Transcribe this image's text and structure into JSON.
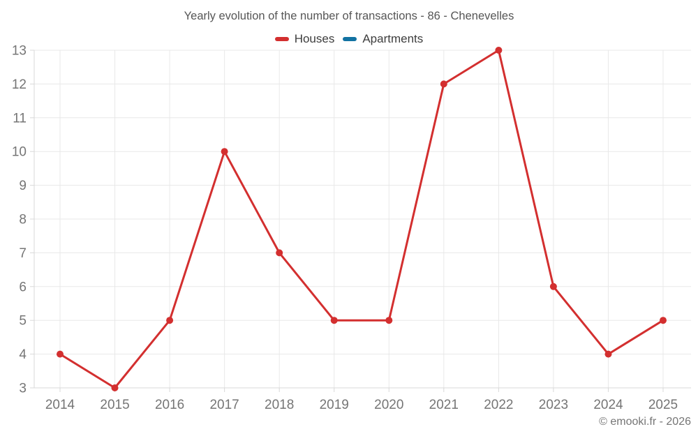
{
  "page": {
    "copyright": "© emooki.fr - 2026"
  },
  "chart_data": {
    "type": "line",
    "title": "Yearly evolution of the number of transactions - 86 - Chenevelles",
    "categories": [
      "2014",
      "2015",
      "2016",
      "2017",
      "2018",
      "2019",
      "2020",
      "2021",
      "2022",
      "2023",
      "2024",
      "2025"
    ],
    "series": [
      {
        "name": "Houses",
        "color": "#d32f2f",
        "marker": "circle",
        "values": [
          4,
          3,
          5,
          10,
          7,
          5,
          5,
          12,
          13,
          6,
          4,
          5
        ]
      },
      {
        "name": "Apartments",
        "color": "#1272a2",
        "marker": "circle",
        "values": []
      }
    ],
    "xlabel": "",
    "ylabel": "",
    "ylim": [
      3,
      13
    ],
    "yticks": [
      3,
      4,
      5,
      6,
      7,
      8,
      9,
      10,
      11,
      12,
      13
    ],
    "grid": true,
    "legend_position": "top",
    "colors": {
      "gridline": "#e8e8e8",
      "axis": "#d8d8d8",
      "tick_label": "#757575",
      "title": "#565656"
    }
  }
}
